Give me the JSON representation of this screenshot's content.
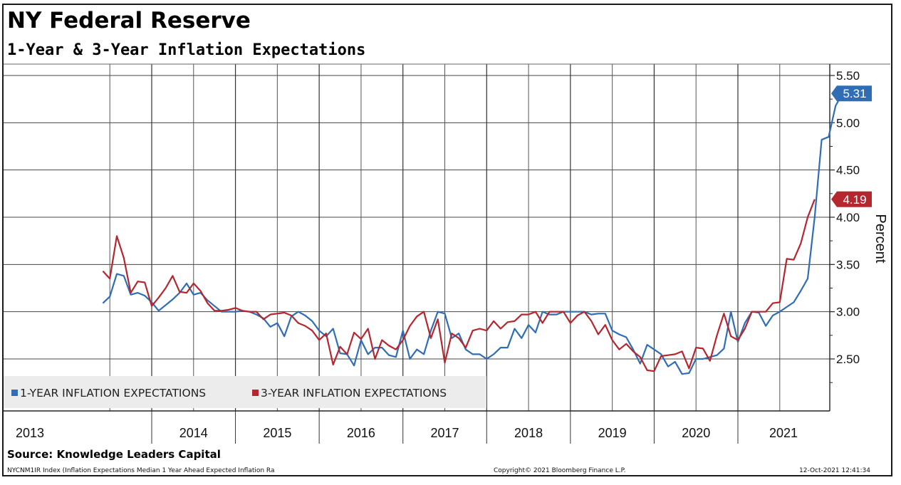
{
  "header": {
    "title": "NY Federal Reserve",
    "subtitle": "1-Year & 3-Year Inflation Expectations"
  },
  "footer": {
    "source": "Source: Knowledge Leaders Capital",
    "index_note": "NYCNM1IR Index (Inflation Expectations Median 1 Year Ahead Expected Inflation Ra",
    "copyright": "Copyright© 2021 Bloomberg Finance L.P.",
    "timestamp": "12-Oct-2021 12:41:34"
  },
  "chart_data": {
    "type": "line",
    "ylabel": "Percent",
    "ylim": [
      2.1,
      5.6
    ],
    "yticks": [
      2.5,
      3.0,
      3.5,
      4.0,
      4.5,
      5.0,
      5.5
    ],
    "ytick_labels": [
      "2.50",
      "3.00",
      "3.50",
      "4.00",
      "4.50",
      "5.00",
      "5.50"
    ],
    "x_year_labels": [
      "2013",
      "2014",
      "2015",
      "2016",
      "2017",
      "2018",
      "2019",
      "2020",
      "2021"
    ],
    "x_start": "2013-06",
    "x_end": "2021-10",
    "grid": true,
    "legend_position": "bottom-left",
    "series": [
      {
        "name": "1-YEAR INFLATION EXPECTATIONS",
        "color": "#2f6db5",
        "last_label": "5.31",
        "values": [
          3.09,
          3.16,
          3.4,
          3.38,
          3.18,
          3.2,
          3.17,
          3.1,
          3.01,
          3.07,
          3.13,
          3.2,
          3.3,
          3.18,
          3.2,
          3.12,
          3.06,
          3.0,
          3.0,
          3.0,
          3.01,
          3.0,
          2.97,
          2.93,
          2.84,
          2.88,
          2.74,
          2.95,
          3.0,
          2.96,
          2.9,
          2.8,
          2.74,
          2.82,
          2.56,
          2.55,
          2.43,
          2.7,
          2.55,
          2.62,
          2.62,
          2.54,
          2.52,
          2.8,
          2.5,
          2.6,
          2.55,
          2.8,
          3.0,
          2.98,
          2.72,
          2.77,
          2.6,
          2.55,
          2.55,
          2.5,
          2.55,
          2.62,
          2.62,
          2.82,
          2.72,
          2.86,
          2.78,
          3.0,
          2.97,
          2.97,
          3.0,
          3.0,
          3.0,
          3.0,
          2.97,
          2.98,
          2.98,
          2.8,
          2.76,
          2.73,
          2.6,
          2.45,
          2.65,
          2.6,
          2.55,
          2.42,
          2.47,
          2.34,
          2.35,
          2.5,
          2.5,
          2.52,
          2.54,
          2.61,
          3.0,
          2.68,
          2.88,
          3.0,
          2.99,
          2.85,
          2.96,
          3.0,
          3.05,
          3.1,
          3.22,
          3.35,
          4.0,
          4.82,
          4.85,
          5.18,
          5.31
        ]
      },
      {
        "name": "3-YEAR INFLATION EXPECTATIONS",
        "color": "#b5262f",
        "last_label": "4.19",
        "values": [
          3.43,
          3.35,
          3.8,
          3.57,
          3.2,
          3.32,
          3.31,
          3.06,
          3.15,
          3.25,
          3.38,
          3.21,
          3.2,
          3.3,
          3.22,
          3.09,
          3.01,
          3.01,
          3.02,
          3.04,
          3.01,
          3.0,
          3.0,
          2.92,
          2.97,
          2.98,
          2.99,
          2.96,
          2.88,
          2.85,
          2.8,
          2.7,
          2.77,
          2.44,
          2.63,
          2.55,
          2.78,
          2.71,
          2.82,
          2.5,
          2.7,
          2.64,
          2.6,
          2.7,
          2.85,
          2.95,
          3.0,
          2.72,
          2.92,
          2.46,
          2.77,
          2.72,
          2.62,
          2.8,
          2.82,
          2.8,
          2.9,
          2.82,
          2.89,
          2.9,
          2.97,
          2.97,
          3.0,
          2.88,
          3.0,
          3.0,
          3.0,
          2.88,
          2.96,
          3.0,
          2.9,
          2.76,
          2.86,
          2.7,
          2.6,
          2.66,
          2.58,
          2.52,
          2.38,
          2.37,
          2.53,
          2.54,
          2.55,
          2.58,
          2.4,
          2.62,
          2.61,
          2.48,
          2.75,
          2.98,
          2.74,
          2.7,
          2.82,
          3.0,
          3.0,
          3.0,
          3.09,
          3.1,
          3.56,
          3.55,
          3.72,
          4.0,
          4.19
        ]
      }
    ]
  }
}
